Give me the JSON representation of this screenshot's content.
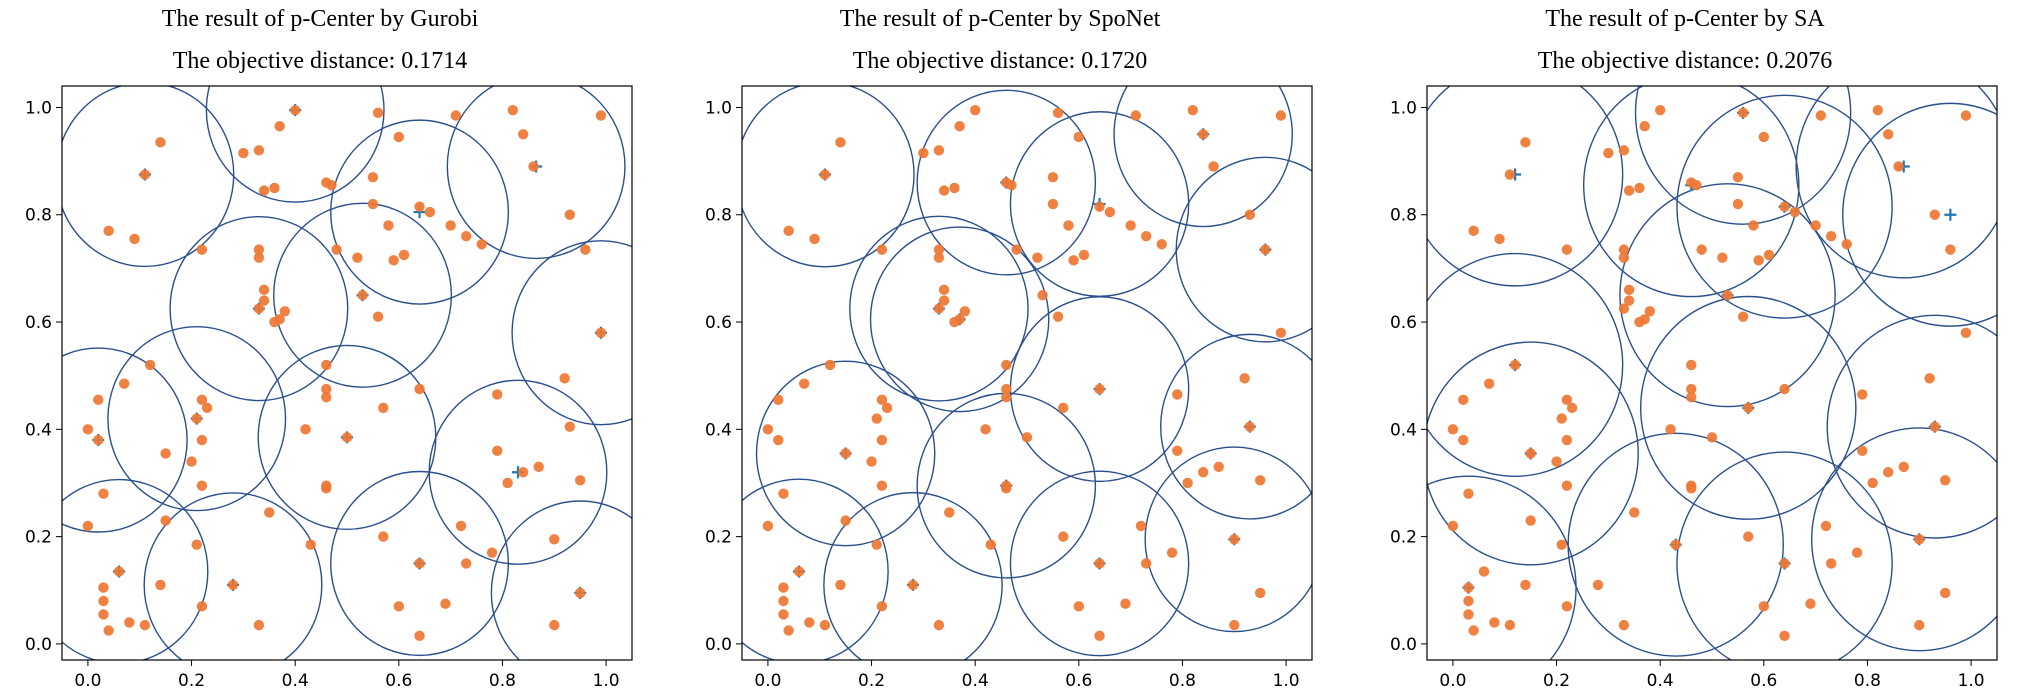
{
  "chart_data": [
    {
      "type": "scatter",
      "title": "The result of p-Center by Gurobi",
      "subtitle": "The objective distance: 0.1714",
      "radius": 0.1714,
      "xlim": [
        -0.05,
        1.05
      ],
      "ylim": [
        -0.03,
        1.04
      ],
      "xticks": [
        "0.0",
        "0.2",
        "0.4",
        "0.6",
        "0.8",
        "1.0"
      ],
      "yticks": [
        "0.0",
        "0.2",
        "0.4",
        "0.6",
        "0.8",
        "1.0"
      ],
      "colors": {
        "point": "#ee7733",
        "center": "#1f77b4",
        "circle": "#2b4f8c"
      },
      "centers": [
        [
          0.11,
          0.875
        ],
        [
          0.4,
          0.995
        ],
        [
          0.64,
          0.805
        ],
        [
          0.865,
          0.89
        ],
        [
          0.99,
          0.58
        ],
        [
          0.33,
          0.625
        ],
        [
          0.53,
          0.65
        ],
        [
          0.21,
          0.42
        ],
        [
          0.02,
          0.38
        ],
        [
          0.5,
          0.385
        ],
        [
          0.83,
          0.32
        ],
        [
          0.06,
          0.135
        ],
        [
          0.28,
          0.11
        ],
        [
          0.64,
          0.15
        ],
        [
          0.95,
          0.095
        ]
      ]
    },
    {
      "type": "scatter",
      "title": "The result of p-Center by SpoNet",
      "subtitle": "The objective distance: 0.1720",
      "radius": 0.172,
      "xlim": [
        -0.05,
        1.05
      ],
      "ylim": [
        -0.03,
        1.04
      ],
      "xticks": [
        "0.0",
        "0.2",
        "0.4",
        "0.6",
        "0.8",
        "1.0"
      ],
      "yticks": [
        "0.0",
        "0.2",
        "0.4",
        "0.6",
        "0.8",
        "1.0"
      ],
      "colors": {
        "point": "#ee7733",
        "center": "#1f77b4",
        "circle": "#2b4f8c"
      },
      "centers": [
        [
          0.11,
          0.875
        ],
        [
          0.46,
          0.86
        ],
        [
          0.64,
          0.82
        ],
        [
          0.84,
          0.95
        ],
        [
          0.96,
          0.735
        ],
        [
          0.33,
          0.625
        ],
        [
          0.37,
          0.605
        ],
        [
          0.15,
          0.355
        ],
        [
          0.46,
          0.295
        ],
        [
          0.64,
          0.475
        ],
        [
          0.93,
          0.405
        ],
        [
          0.06,
          0.135
        ],
        [
          0.28,
          0.11
        ],
        [
          0.64,
          0.15
        ],
        [
          0.9,
          0.195
        ]
      ]
    },
    {
      "type": "scatter",
      "title": "The result of p-Center by SA",
      "subtitle": "The objective distance: 0.2076",
      "radius": 0.2076,
      "xlim": [
        -0.05,
        1.05
      ],
      "ylim": [
        -0.03,
        1.04
      ],
      "xticks": [
        "0.0",
        "0.2",
        "0.4",
        "0.6",
        "0.8",
        "1.0"
      ],
      "yticks": [
        "0.0",
        "0.2",
        "0.4",
        "0.6",
        "0.8",
        "1.0"
      ],
      "colors": {
        "point": "#ee7733",
        "center": "#1f77b4",
        "circle": "#2b4f8c"
      },
      "centers": [
        [
          0.12,
          0.875
        ],
        [
          0.46,
          0.855
        ],
        [
          0.56,
          0.99
        ],
        [
          0.64,
          0.815
        ],
        [
          0.87,
          0.89
        ],
        [
          0.96,
          0.8
        ],
        [
          0.12,
          0.52
        ],
        [
          0.53,
          0.65
        ],
        [
          0.15,
          0.355
        ],
        [
          0.57,
          0.44
        ],
        [
          0.93,
          0.405
        ],
        [
          0.03,
          0.105
        ],
        [
          0.43,
          0.185
        ],
        [
          0.64,
          0.15
        ],
        [
          0.9,
          0.195
        ]
      ]
    }
  ],
  "demand_points": [
    [
      0.14,
      0.935
    ],
    [
      0.11,
      0.875
    ],
    [
      0.04,
      0.77
    ],
    [
      0.09,
      0.755
    ],
    [
      0.4,
      0.995
    ],
    [
      0.37,
      0.965
    ],
    [
      0.3,
      0.915
    ],
    [
      0.33,
      0.92
    ],
    [
      0.34,
      0.845
    ],
    [
      0.36,
      0.85
    ],
    [
      0.46,
      0.86
    ],
    [
      0.47,
      0.855
    ],
    [
      0.56,
      0.99
    ],
    [
      0.6,
      0.945
    ],
    [
      0.55,
      0.87
    ],
    [
      0.64,
      0.815
    ],
    [
      0.66,
      0.805
    ],
    [
      0.55,
      0.82
    ],
    [
      0.58,
      0.78
    ],
    [
      0.52,
      0.72
    ],
    [
      0.48,
      0.735
    ],
    [
      0.59,
      0.715
    ],
    [
      0.61,
      0.725
    ],
    [
      0.7,
      0.78
    ],
    [
      0.73,
      0.76
    ],
    [
      0.76,
      0.745
    ],
    [
      0.86,
      0.89
    ],
    [
      0.84,
      0.95
    ],
    [
      0.82,
      0.995
    ],
    [
      0.93,
      0.8
    ],
    [
      0.99,
      0.985
    ],
    [
      0.71,
      0.985
    ],
    [
      0.96,
      0.735
    ],
    [
      0.22,
      0.735
    ],
    [
      0.33,
      0.735
    ],
    [
      0.33,
      0.72
    ],
    [
      0.34,
      0.66
    ],
    [
      0.34,
      0.64
    ],
    [
      0.33,
      0.625
    ],
    [
      0.36,
      0.6
    ],
    [
      0.38,
      0.62
    ],
    [
      0.37,
      0.605
    ],
    [
      0.53,
      0.65
    ],
    [
      0.56,
      0.61
    ],
    [
      0.46,
      0.52
    ],
    [
      0.46,
      0.475
    ],
    [
      0.46,
      0.46
    ],
    [
      0.42,
      0.4
    ],
    [
      0.5,
      0.385
    ],
    [
      0.57,
      0.44
    ],
    [
      0.64,
      0.475
    ],
    [
      0.79,
      0.465
    ],
    [
      0.79,
      0.36
    ],
    [
      0.81,
      0.3
    ],
    [
      0.84,
      0.32
    ],
    [
      0.87,
      0.33
    ],
    [
      0.93,
      0.405
    ],
    [
      0.92,
      0.495
    ],
    [
      0.95,
      0.305
    ],
    [
      0.99,
      0.58
    ],
    [
      0.12,
      0.52
    ],
    [
      0.02,
      0.455
    ],
    [
      0.07,
      0.485
    ],
    [
      0.0,
      0.4
    ],
    [
      0.02,
      0.38
    ],
    [
      0.21,
      0.42
    ],
    [
      0.22,
      0.455
    ],
    [
      0.23,
      0.44
    ],
    [
      0.22,
      0.38
    ],
    [
      0.2,
      0.34
    ],
    [
      0.22,
      0.295
    ],
    [
      0.15,
      0.355
    ],
    [
      0.03,
      0.28
    ],
    [
      0.0,
      0.22
    ],
    [
      0.15,
      0.23
    ],
    [
      0.35,
      0.245
    ],
    [
      0.43,
      0.185
    ],
    [
      0.21,
      0.185
    ],
    [
      0.46,
      0.295
    ],
    [
      0.46,
      0.29
    ],
    [
      0.57,
      0.2
    ],
    [
      0.72,
      0.22
    ],
    [
      0.73,
      0.15
    ],
    [
      0.78,
      0.17
    ],
    [
      0.9,
      0.195
    ],
    [
      0.64,
      0.15
    ],
    [
      0.06,
      0.135
    ],
    [
      0.03,
      0.105
    ],
    [
      0.03,
      0.08
    ],
    [
      0.03,
      0.055
    ],
    [
      0.04,
      0.025
    ],
    [
      0.08,
      0.04
    ],
    [
      0.11,
      0.035
    ],
    [
      0.14,
      0.11
    ],
    [
      0.22,
      0.07
    ],
    [
      0.28,
      0.11
    ],
    [
      0.33,
      0.035
    ],
    [
      0.6,
      0.07
    ],
    [
      0.69,
      0.075
    ],
    [
      0.64,
      0.015
    ],
    [
      0.9,
      0.035
    ],
    [
      0.95,
      0.095
    ]
  ]
}
